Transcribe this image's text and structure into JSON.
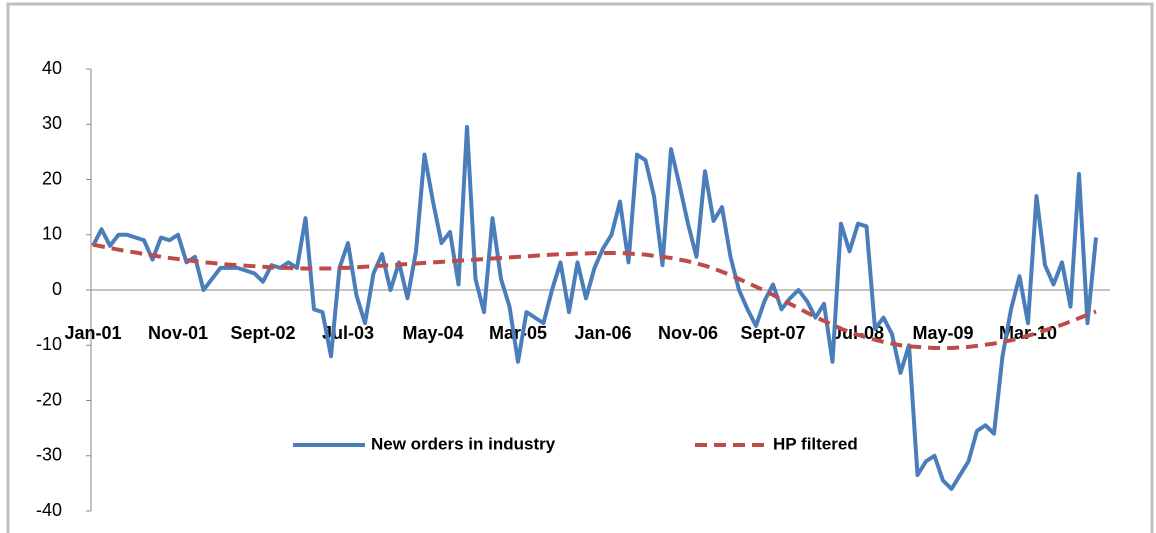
{
  "chart_data": {
    "type": "line",
    "categories": [
      "Jan-01",
      null,
      null,
      null,
      null,
      null,
      null,
      null,
      null,
      null,
      "Nov-01",
      null,
      null,
      null,
      null,
      null,
      null,
      null,
      null,
      null,
      "Sept-02",
      null,
      null,
      null,
      null,
      null,
      null,
      null,
      null,
      null,
      "Jul-03",
      null,
      null,
      null,
      null,
      null,
      null,
      null,
      null,
      null,
      "May-04",
      null,
      null,
      null,
      null,
      null,
      null,
      null,
      null,
      null,
      "Mar-05",
      null,
      null,
      null,
      null,
      null,
      null,
      null,
      null,
      null,
      "Jan-06",
      null,
      null,
      null,
      null,
      null,
      null,
      null,
      null,
      null,
      "Nov-06",
      null,
      null,
      null,
      null,
      null,
      null,
      null,
      null,
      null,
      "Sept-07",
      null,
      null,
      null,
      null,
      null,
      null,
      null,
      null,
      null,
      "Jul-08",
      null,
      null,
      null,
      null,
      null,
      null,
      null,
      null,
      null,
      "May-09",
      null,
      null,
      null,
      null,
      null,
      null,
      null,
      null,
      null,
      "Mar-10",
      null,
      null,
      null,
      null,
      null,
      null,
      null,
      null
    ],
    "series": [
      {
        "name": "New orders in industry",
        "color": "#4a7ebb",
        "dashed": false,
        "values": [
          8,
          11,
          8,
          10,
          10,
          9.5,
          9,
          5.5,
          9.5,
          9,
          10,
          5,
          6,
          0,
          2,
          4,
          4,
          4,
          3.5,
          3,
          1.5,
          4.5,
          4,
          5,
          4,
          13,
          -3.5,
          -4,
          -12,
          4,
          8.5,
          -1,
          -6,
          3,
          6.5,
          0,
          5,
          -1.5,
          7,
          24.5,
          16,
          8.5,
          10.5,
          1,
          29.5,
          2,
          -4,
          13,
          2,
          -3,
          -13,
          -4,
          -5,
          -6,
          0,
          5,
          -4,
          5,
          -1.5,
          4,
          7.5,
          10,
          16,
          5,
          24.5,
          23.5,
          17,
          4.5,
          25.5,
          19,
          12,
          6,
          21.5,
          12.5,
          15,
          6,
          0,
          -3.5,
          -6.5,
          -2,
          1,
          -3.5,
          -1.5,
          0,
          -2,
          -5,
          -2.5,
          -13,
          12,
          7,
          12,
          11.5,
          -7,
          -5,
          -8,
          -15,
          -10,
          -33.5,
          -31,
          -30,
          -34.5,
          -36,
          -33.5,
          -31,
          -25.5,
          -24.5,
          -26,
          -12,
          -3.5,
          2.5,
          -6,
          17,
          4.5,
          1,
          5,
          -3,
          21,
          -6,
          9.5
        ]
      },
      {
        "name": "HP filtered",
        "color": "#be4b48",
        "dashed": true,
        "values": [
          8.2,
          7.9,
          7.6,
          7.3,
          7.0,
          6.8,
          6.5,
          6.3,
          6.0,
          5.8,
          5.6,
          5.4,
          5.2,
          5.0,
          4.9,
          4.7,
          4.6,
          4.5,
          4.4,
          4.3,
          4.2,
          4.1,
          4.0,
          4.0,
          3.9,
          3.9,
          3.9,
          3.9,
          3.9,
          4.0,
          4.0,
          4.1,
          4.2,
          4.3,
          4.4,
          4.5,
          4.6,
          4.7,
          4.8,
          4.9,
          5.0,
          5.1,
          5.2,
          5.3,
          5.4,
          5.5,
          5.6,
          5.7,
          5.8,
          5.9,
          6.0,
          6.1,
          6.2,
          6.3,
          6.4,
          6.5,
          6.5,
          6.6,
          6.6,
          6.7,
          6.7,
          6.7,
          6.7,
          6.6,
          6.5,
          6.4,
          6.2,
          6.0,
          5.8,
          5.5,
          5.2,
          4.8,
          4.4,
          3.9,
          3.3,
          2.7,
          2.0,
          1.3,
          0.6,
          -0.1,
          -0.9,
          -1.7,
          -2.5,
          -3.3,
          -4.1,
          -4.9,
          -5.6,
          -6.3,
          -7.0,
          -7.6,
          -8.1,
          -8.6,
          -9.0,
          -9.4,
          -9.7,
          -10.0,
          -10.2,
          -10.3,
          -10.4,
          -10.5,
          -10.5,
          -10.5,
          -10.4,
          -10.3,
          -10.1,
          -9.9,
          -9.7,
          -9.4,
          -9.1,
          -8.7,
          -8.3,
          -7.8,
          -7.3,
          -6.8,
          -6.3,
          -5.7,
          -5.1,
          -4.5,
          -3.9
        ]
      }
    ],
    "ylim": [
      -40,
      40
    ],
    "yticks": [
      -40,
      -30,
      -20,
      -10,
      0,
      10,
      20,
      30,
      40
    ],
    "grid": false,
    "legend": "bottom"
  }
}
